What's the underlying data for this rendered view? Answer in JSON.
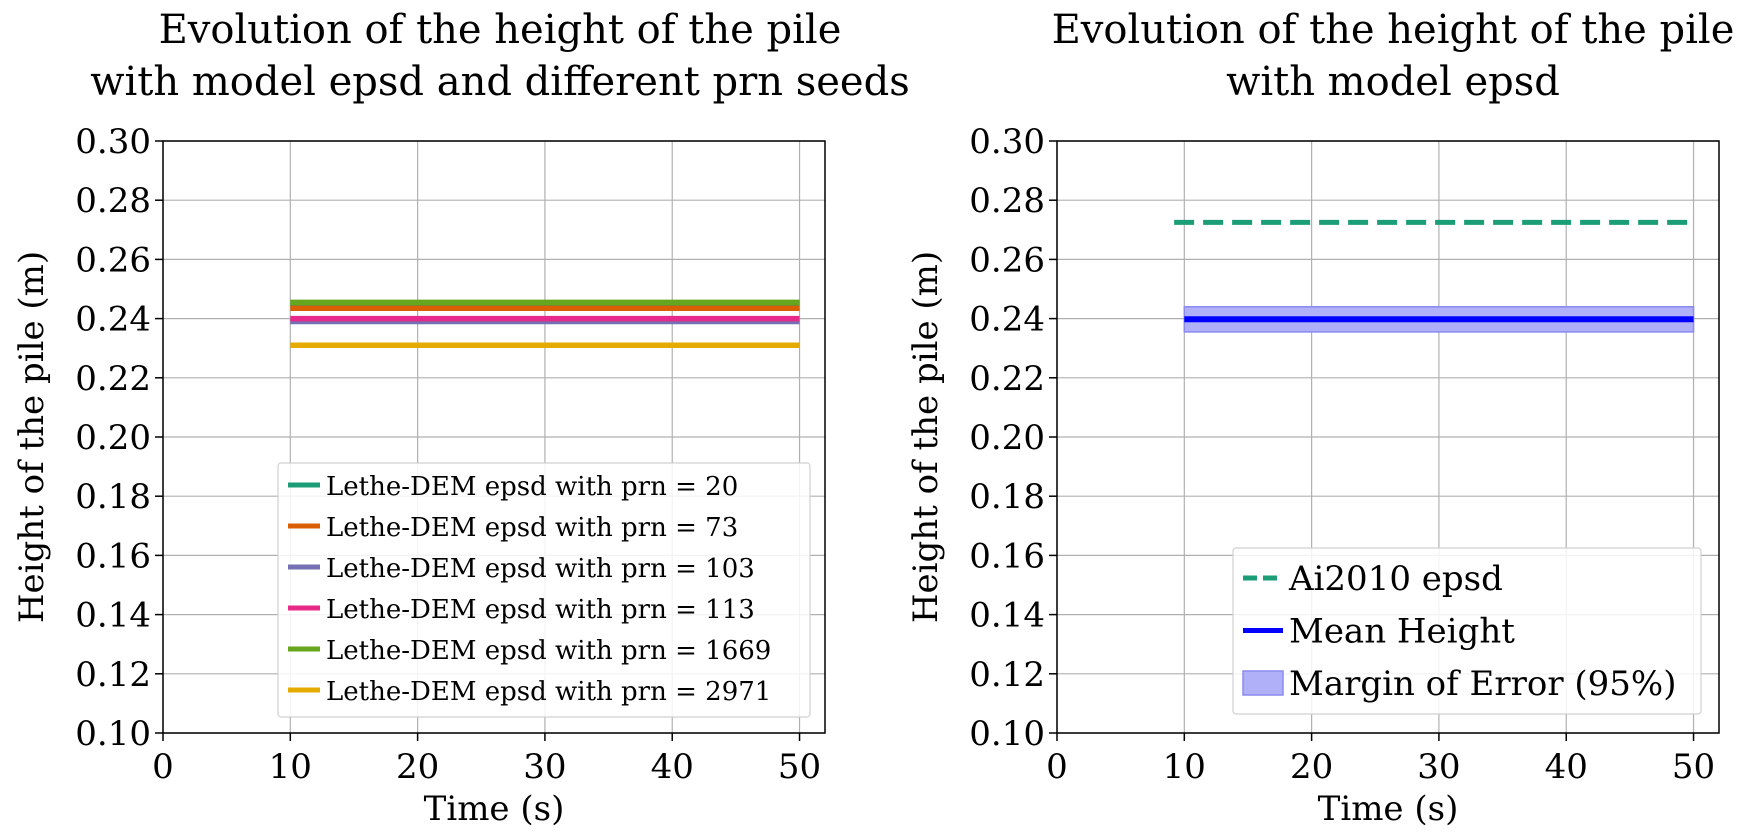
{
  "chart_data": [
    {
      "type": "line",
      "title": "Evolution of the height of the pile\nwith model epsd and different prn seeds",
      "xlabel": "Time (s)",
      "ylabel": "Height of the pile (m)",
      "xlim": [
        0,
        52
      ],
      "ylim": [
        0.1,
        0.3
      ],
      "xticks": [
        "0",
        "10",
        "20",
        "30",
        "40",
        "50"
      ],
      "yticks": [
        "0.10",
        "0.12",
        "0.14",
        "0.16",
        "0.18",
        "0.20",
        "0.22",
        "0.24",
        "0.26",
        "0.28",
        "0.30"
      ],
      "grid": true,
      "legend_position": "lower-right",
      "series": [
        {
          "name": "Lethe-DEM epsd with prn = 20",
          "color": "#1b9e77",
          "x": [
            10,
            50
          ],
          "y": [
            0.245,
            0.245
          ]
        },
        {
          "name": "Lethe-DEM epsd with prn = 73",
          "color": "#d95f02",
          "x": [
            10,
            50
          ],
          "y": [
            0.2435,
            0.2435
          ]
        },
        {
          "name": "Lethe-DEM epsd with prn = 103",
          "color": "#7570b3",
          "x": [
            10,
            50
          ],
          "y": [
            0.239,
            0.239
          ]
        },
        {
          "name": "Lethe-DEM epsd with prn = 113",
          "color": "#e7298a",
          "x": [
            10,
            50
          ],
          "y": [
            0.24,
            0.24
          ]
        },
        {
          "name": "Lethe-DEM epsd with prn = 1669",
          "color": "#66a61e",
          "x": [
            10,
            50
          ],
          "y": [
            0.2455,
            0.2455
          ]
        },
        {
          "name": "Lethe-DEM epsd with prn = 2971",
          "color": "#e6ab02",
          "x": [
            10,
            50
          ],
          "y": [
            0.231,
            0.231
          ]
        }
      ]
    },
    {
      "type": "line",
      "title": "Evolution of the height of the pile\nwith model epsd",
      "xlabel": "Time (s)",
      "ylabel": "Height of the pile (m)",
      "xlim": [
        0,
        52
      ],
      "ylim": [
        0.1,
        0.3
      ],
      "xticks": [
        "0",
        "10",
        "20",
        "30",
        "40",
        "50"
      ],
      "yticks": [
        "0.10",
        "0.12",
        "0.14",
        "0.16",
        "0.18",
        "0.20",
        "0.22",
        "0.24",
        "0.26",
        "0.28",
        "0.30"
      ],
      "grid": true,
      "legend_position": "lower-right",
      "series": [
        {
          "name": "Ai2010 epsd",
          "color": "#1b9e77",
          "style": "dashed",
          "x": [
            9.2,
            50
          ],
          "y": [
            0.2725,
            0.2725
          ]
        },
        {
          "name": "Mean Height",
          "color": "#0000ff",
          "style": "solid",
          "x": [
            10,
            50
          ],
          "y": [
            0.2398,
            0.2398
          ]
        }
      ],
      "band": {
        "name": "Margin of Error (95%)",
        "color": "#b0b0f8",
        "x": [
          10,
          50
        ],
        "lower": 0.2355,
        "upper": 0.244
      }
    }
  ]
}
